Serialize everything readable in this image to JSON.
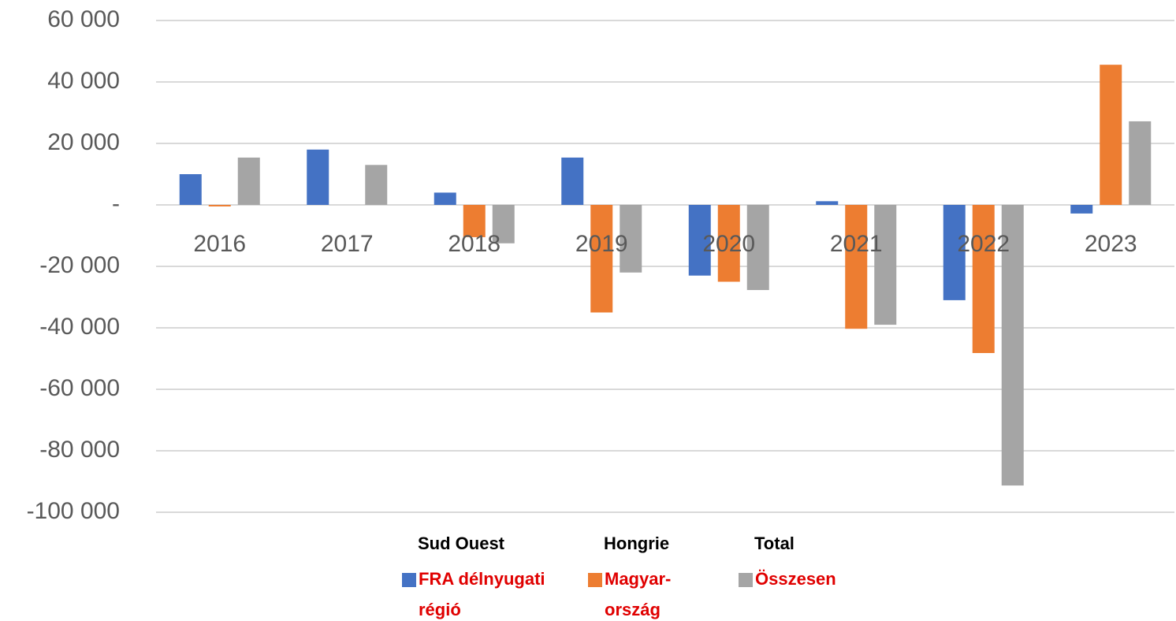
{
  "chart_data": {
    "type": "bar",
    "categories": [
      "2016",
      "2017",
      "2018",
      "2019",
      "2020",
      "2021",
      "2022",
      "2023"
    ],
    "series": [
      {
        "heading": "Sud Ouest",
        "name": [
          "FRA délnyugati",
          "régió"
        ],
        "color": "#4472c4",
        "values": [
          10000,
          18000,
          4000,
          15400,
          -23000,
          1200,
          -31000,
          -2800
        ]
      },
      {
        "heading": "Hongrie",
        "name": [
          "Magyar-",
          "ország"
        ],
        "color": "#ed7d31",
        "values": [
          -500,
          0,
          -10500,
          -35000,
          -25000,
          -40300,
          -48200,
          45600
        ]
      },
      {
        "heading": "Total",
        "name": [
          "Összesen"
        ],
        "color": "#a5a5a5",
        "values": [
          15400,
          13000,
          -12500,
          -22000,
          -27700,
          -39000,
          -91300,
          27200
        ]
      }
    ],
    "ylim": [
      -100000,
      60000
    ],
    "yticks": [
      {
        "value": 60000,
        "label": "60 000"
      },
      {
        "value": 40000,
        "label": "40 000"
      },
      {
        "value": 20000,
        "label": "20 000"
      },
      {
        "value": 0,
        "label": "-"
      },
      {
        "value": -20000,
        "label": "-20 000"
      },
      {
        "value": -40000,
        "label": "-40 000"
      },
      {
        "value": -60000,
        "label": "-60 000"
      },
      {
        "value": -80000,
        "label": "-80 000"
      },
      {
        "value": -100000,
        "label": "-100 000"
      }
    ],
    "grid": true
  }
}
